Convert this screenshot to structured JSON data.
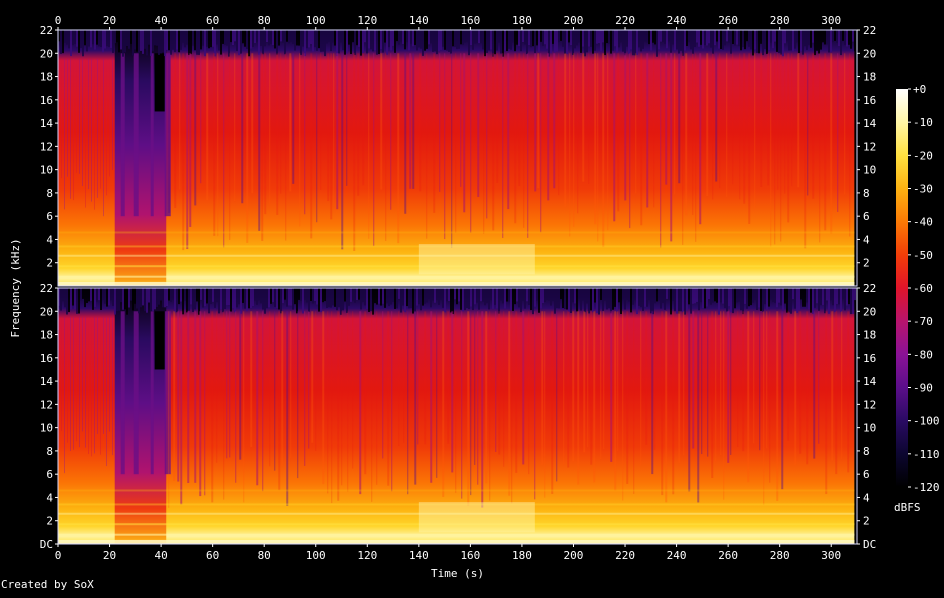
{
  "chart_data": {
    "type": "heatmap",
    "subtype": "spectrogram",
    "xlabel": "Time (s)",
    "ylabel": "Frequency (kHz)",
    "x_ticks": [
      "0",
      "20",
      "40",
      "60",
      "80",
      "100",
      "120",
      "140",
      "160",
      "180",
      "200",
      "220",
      "240",
      "260",
      "280",
      "300"
    ],
    "x_range": [
      0,
      310
    ],
    "channels": [
      {
        "y_ticks": [
          "2",
          "4",
          "6",
          "8",
          "10",
          "12",
          "14",
          "16",
          "18",
          "20",
          "22"
        ],
        "y_range": [
          0,
          22
        ]
      },
      {
        "y_ticks": [
          "DC",
          "2",
          "4",
          "6",
          "8",
          "10",
          "12",
          "14",
          "16",
          "18",
          "20",
          "22"
        ],
        "y_range": [
          0,
          22
        ]
      }
    ],
    "colorbar": {
      "label": "dBFS",
      "ticks": [
        "+0",
        "-10",
        "-20",
        "-30",
        "-40",
        "-50",
        "-60",
        "-70",
        "-80",
        "-90",
        "-100",
        "-110",
        "-120"
      ],
      "range": [
        -120,
        0
      ],
      "colors": [
        "#000000",
        "#0c0630",
        "#2a0a63",
        "#5b0e8a",
        "#8a1296",
        "#b8146c",
        "#e0142a",
        "#f23d08",
        "#fb7a05",
        "#fdb212",
        "#ffe040",
        "#fff6a6",
        "#ffffff"
      ]
    },
    "audio_end_s": 309,
    "quiet_region_s": [
      22,
      42
    ],
    "bright_low_band_s": [
      140,
      185
    ]
  },
  "footer": {
    "credit": "Created by SoX"
  }
}
